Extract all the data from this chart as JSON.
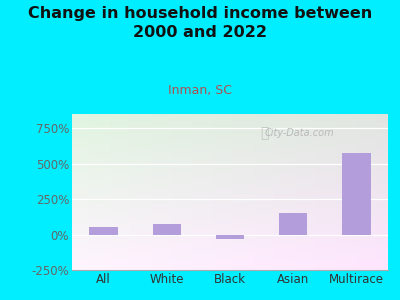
{
  "title": "Change in household income between\n2000 and 2022",
  "subtitle": "Inman, SC",
  "categories": [
    "All",
    "White",
    "Black",
    "Asian",
    "Multirace"
  ],
  "values": [
    50,
    75,
    -30,
    150,
    575
  ],
  "bar_color": "#b39ddb",
  "background_color": "#00eeff",
  "ylim": [
    -250,
    850
  ],
  "yticks": [
    -250,
    0,
    250,
    500,
    750
  ],
  "title_fontsize": 11.5,
  "subtitle_fontsize": 9,
  "tick_fontsize": 8.5,
  "watermark": "City-Data.com"
}
